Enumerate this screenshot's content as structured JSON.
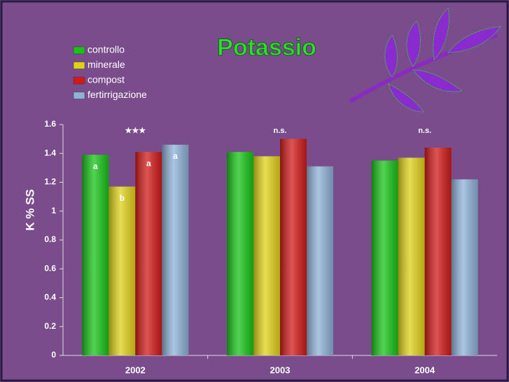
{
  "chart_data": {
    "type": "bar",
    "title": "Potassio",
    "y_label": "K % SS",
    "categories": [
      "2002",
      "2003",
      "2004"
    ],
    "group_labels": [
      "★★★",
      "n.s.",
      "n.s."
    ],
    "series": [
      {
        "name": "controllo",
        "color": "#19c419",
        "values": [
          1.39,
          1.41,
          1.35
        ],
        "letters": [
          "a",
          null,
          null
        ]
      },
      {
        "name": "minerale",
        "color": "#e0d21a",
        "values": [
          1.17,
          1.38,
          1.37
        ],
        "letters": [
          "b",
          null,
          null
        ]
      },
      {
        "name": "compost",
        "color": "#d21a1a",
        "values": [
          1.41,
          1.5,
          1.44
        ],
        "letters": [
          "a",
          null,
          null
        ]
      },
      {
        "name": "fertirrigazione",
        "color": "#8fb2d8",
        "values": [
          1.46,
          1.31,
          1.22
        ],
        "letters": [
          "a",
          null,
          null
        ]
      }
    ],
    "ylim": [
      0,
      1.6
    ],
    "yticks": [
      0,
      0.2,
      0.4,
      0.6,
      0.8,
      1,
      1.2,
      1.4,
      1.6
    ],
    "legend": "top-left"
  }
}
